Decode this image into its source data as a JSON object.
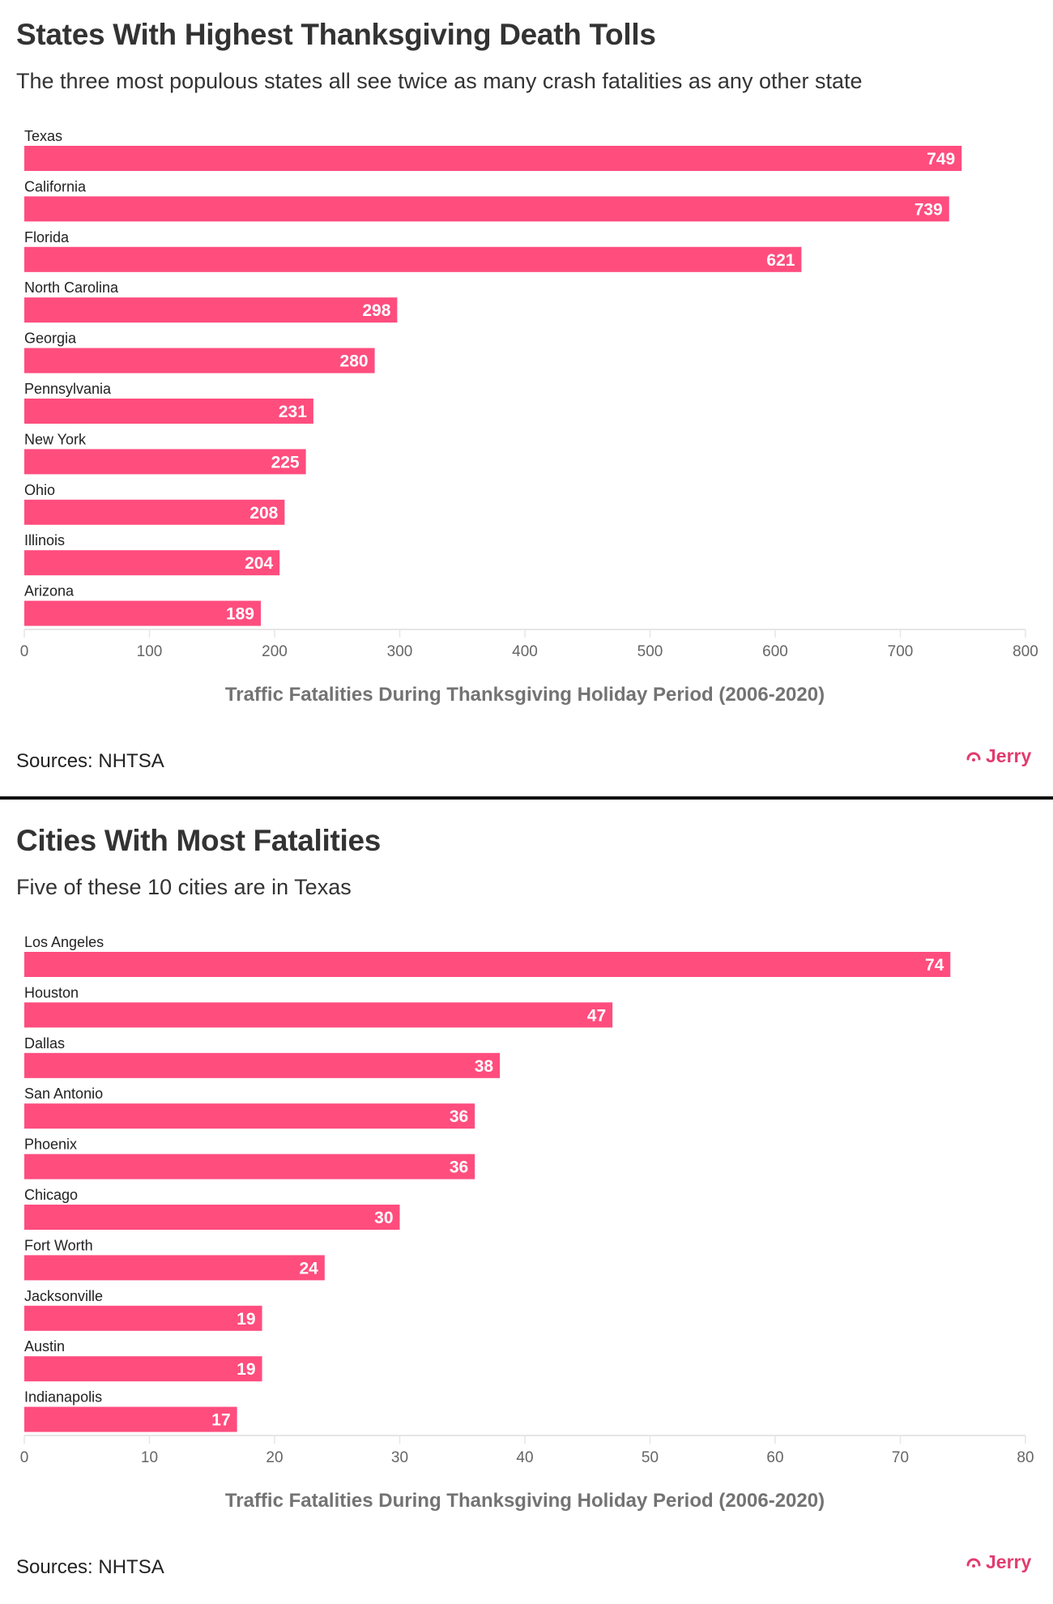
{
  "colors": {
    "bar": "#ff4d7e",
    "value_label": "#ffffff",
    "axis_line": "#e6e6e6",
    "tick_label": "#666666",
    "axis_title": "#737373",
    "brand": "#e23b6e",
    "divider": "#111111"
  },
  "chart_data": [
    {
      "type": "bar",
      "orientation": "horizontal",
      "title": "States With Highest Thanksgiving Death Tolls",
      "subtitle": "The three most populous states all see twice as many crash fatalities as any other state",
      "categories": [
        "Texas",
        "California",
        "Florida",
        "North Carolina",
        "Georgia",
        "Pennsylvania",
        "New York",
        "Ohio",
        "Illinois",
        "Arizona"
      ],
      "values": [
        749,
        739,
        621,
        298,
        280,
        231,
        225,
        208,
        204,
        189
      ],
      "data_labels": [
        "749",
        "739",
        "621",
        "298",
        "280",
        "231",
        "225",
        "208",
        "204",
        "189"
      ],
      "xlabel": "Traffic Fatalities During Thanksgiving Holiday Period (2006-2020)",
      "ylabel": "",
      "xlim": [
        0,
        800
      ],
      "xticks": [
        0,
        100,
        200,
        300,
        400,
        500,
        600,
        700,
        800
      ],
      "xtick_labels": [
        "0",
        "100",
        "200",
        "300",
        "400",
        "500",
        "600",
        "700",
        "800"
      ],
      "grid": false,
      "legend": "none",
      "source": "Sources: NHTSA",
      "brand": "Jerry"
    },
    {
      "type": "bar",
      "orientation": "horizontal",
      "title": "Cities With Most Fatalities",
      "subtitle": "Five of these 10 cities are in Texas",
      "categories": [
        "Los Angeles",
        "Houston",
        "Dallas",
        "San Antonio",
        "Phoenix",
        "Chicago",
        "Fort Worth",
        "Jacksonville",
        "Austin",
        "Indianapolis"
      ],
      "values": [
        74,
        47,
        38,
        36,
        36,
        30,
        24,
        19,
        19,
        17
      ],
      "data_labels": [
        "74",
        "47",
        "38",
        "36",
        "36",
        "30",
        "24",
        "19",
        "19",
        "17"
      ],
      "xlabel": "Traffic Fatalities During Thanksgiving Holiday Period (2006-2020)",
      "ylabel": "",
      "xlim": [
        0,
        80
      ],
      "xticks": [
        0,
        10,
        20,
        30,
        40,
        50,
        60,
        70,
        80
      ],
      "xtick_labels": [
        "0",
        "10",
        "20",
        "30",
        "40",
        "50",
        "60",
        "70",
        "80"
      ],
      "grid": false,
      "legend": "none",
      "source": "Sources: NHTSA",
      "brand": "Jerry"
    }
  ]
}
